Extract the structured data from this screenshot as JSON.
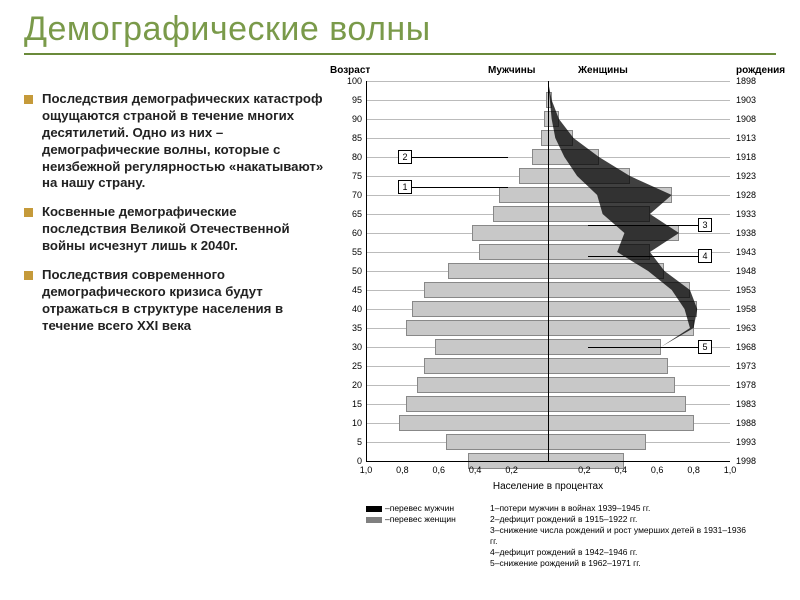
{
  "colors": {
    "accent": "#6a8a3a",
    "title": "#7a9a4a",
    "bullet": "#c59a3a",
    "text": "#222222",
    "bar_fill": "#c8c8c8",
    "bar_edge": "#888888",
    "overlay_dark": "#000000",
    "grid": "#bbbbbb",
    "bg": "#ffffff"
  },
  "title": "Демографические волны",
  "bullets": [
    "Последствия демографических катастроф ощущаются страной в течение многих десятилетий. Одно из них – демографические волны, которые с неизбежной регулярностью «накатывают» на нашу страну.",
    "Косвенные демографические последствия Великой Отечественной войны исчезнут лишь к 2040г.",
    "Последствия современного демографического кризиса будут отражаться в структуре населения в течение всего XXI века"
  ],
  "chart": {
    "type": "population-pyramid",
    "top_labels": {
      "age": "Возраст",
      "men": "Мужчины",
      "women": "Женщины",
      "birth": "рождения"
    },
    "age_axis": {
      "min": 0,
      "max": 100,
      "step": 5,
      "ticks": [
        100,
        95,
        90,
        85,
        80,
        75,
        70,
        65,
        60,
        55,
        50,
        45,
        40,
        35,
        30,
        25,
        20,
        15,
        10,
        5,
        0
      ]
    },
    "year_axis": {
      "ticks": [
        1898,
        1903,
        1908,
        1913,
        1918,
        1923,
        1928,
        1933,
        1938,
        1943,
        1948,
        1953,
        1958,
        1963,
        1968,
        1973,
        1978,
        1983,
        1988,
        1993,
        1998
      ]
    },
    "x_axis": {
      "label": "Население в процентах",
      "ticks_left": [
        1.0,
        0.8,
        0.6,
        0.4,
        0.2
      ],
      "ticks_right": [
        0.2,
        0.4,
        0.6,
        0.8,
        1.0
      ],
      "max": 1.0
    },
    "bars": [
      {
        "age": 100,
        "m": 0.0,
        "f": 0.0
      },
      {
        "age": 95,
        "m": 0.01,
        "f": 0.02
      },
      {
        "age": 90,
        "m": 0.02,
        "f": 0.06
      },
      {
        "age": 85,
        "m": 0.04,
        "f": 0.14
      },
      {
        "age": 80,
        "m": 0.09,
        "f": 0.28
      },
      {
        "age": 75,
        "m": 0.16,
        "f": 0.45
      },
      {
        "age": 70,
        "m": 0.27,
        "f": 0.68
      },
      {
        "age": 65,
        "m": 0.3,
        "f": 0.56
      },
      {
        "age": 60,
        "m": 0.42,
        "f": 0.72
      },
      {
        "age": 55,
        "m": 0.38,
        "f": 0.56
      },
      {
        "age": 50,
        "m": 0.55,
        "f": 0.64
      },
      {
        "age": 45,
        "m": 0.68,
        "f": 0.78
      },
      {
        "age": 40,
        "m": 0.75,
        "f": 0.82
      },
      {
        "age": 35,
        "m": 0.78,
        "f": 0.8
      },
      {
        "age": 30,
        "m": 0.62,
        "f": 0.62
      },
      {
        "age": 25,
        "m": 0.68,
        "f": 0.66
      },
      {
        "age": 20,
        "m": 0.72,
        "f": 0.7
      },
      {
        "age": 15,
        "m": 0.78,
        "f": 0.76
      },
      {
        "age": 10,
        "m": 0.82,
        "f": 0.8
      },
      {
        "age": 5,
        "m": 0.56,
        "f": 0.54
      },
      {
        "age": 0,
        "m": 0.44,
        "f": 0.42
      }
    ],
    "annotations": [
      {
        "n": 1,
        "side": "left",
        "age": 72
      },
      {
        "n": 2,
        "side": "left",
        "age": 80
      },
      {
        "n": 3,
        "side": "right",
        "age": 62
      },
      {
        "n": 4,
        "side": "right",
        "age": 54
      },
      {
        "n": 5,
        "side": "right",
        "age": 30
      }
    ],
    "legend_left": [
      {
        "swatch": "#000000",
        "label": "–перевес мужчин"
      },
      {
        "swatch": "#808080",
        "label": "–перевес женщин"
      }
    ],
    "legend_right": [
      "1–потери мужчин в войнах 1939–1945 гг.",
      "2–дефицит рождений в 1915–1922 гг.",
      "3–снижение числа рождений и рост умерших детей в 1931–1936 гг.",
      "4–дефицит рождений в 1942–1946 гг.",
      "5–снижение рождений в 1962–1971 гг."
    ]
  }
}
